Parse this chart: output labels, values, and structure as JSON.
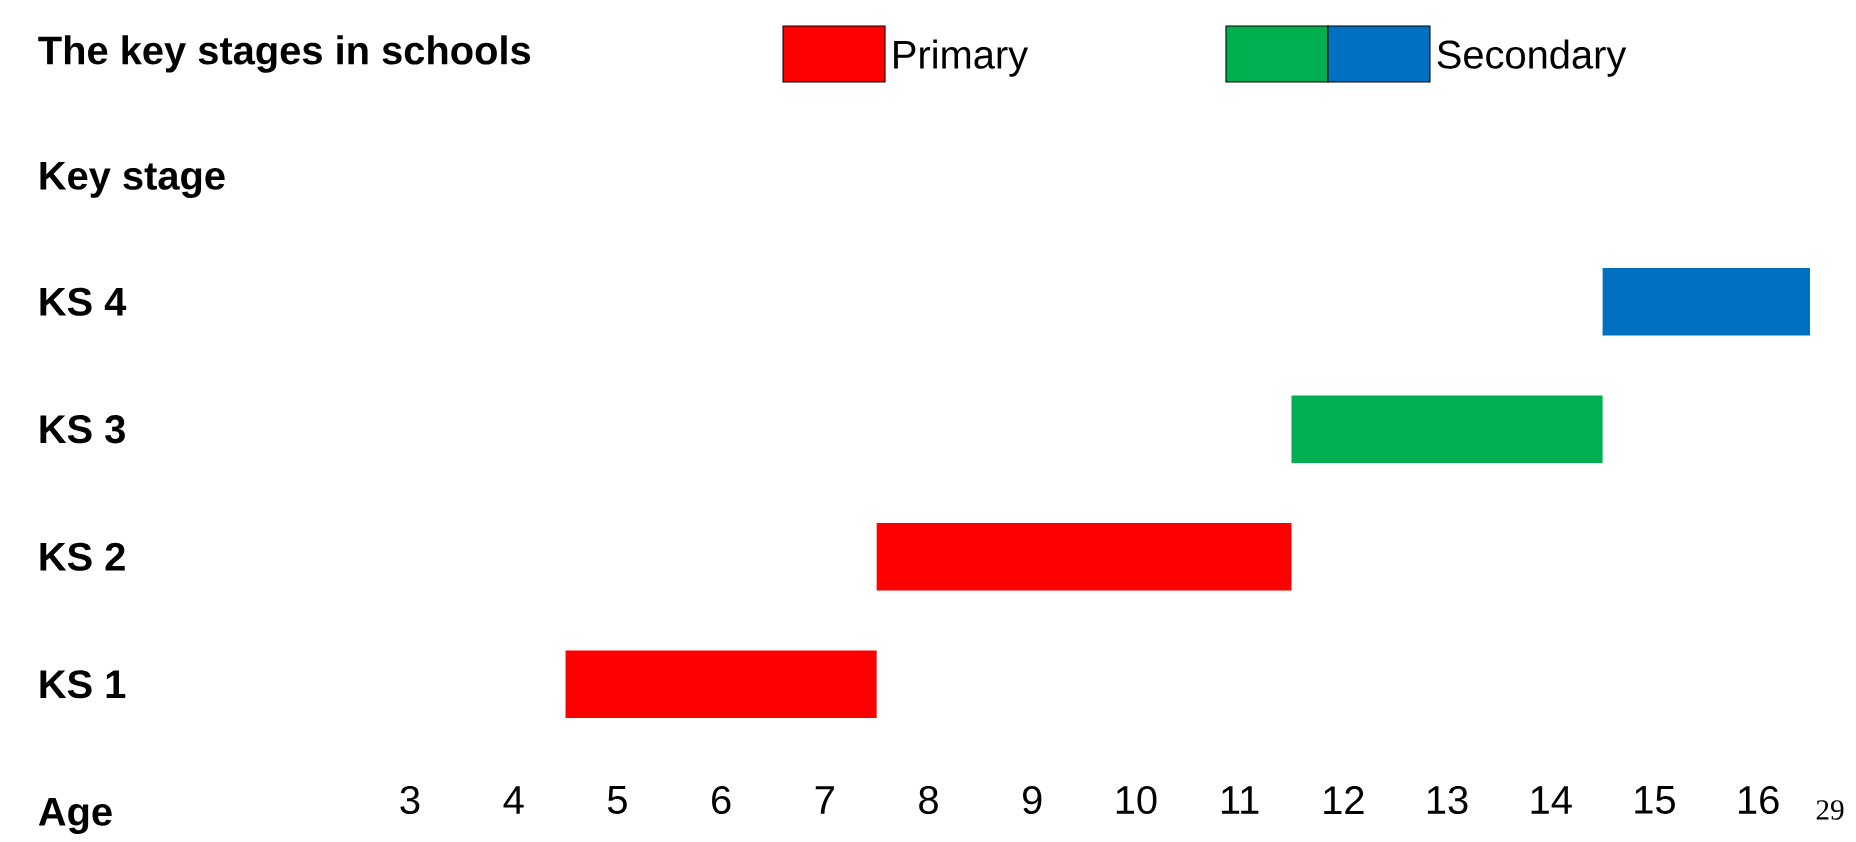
{
  "chart_data": {
    "type": "bar",
    "orientation": "horizontal",
    "title": "The key stages in schools",
    "ylabel": "Key stage",
    "xlabel": "Age",
    "categories": [
      "KS 4",
      "KS 3",
      "KS 2",
      "KS 1"
    ],
    "series": [
      {
        "name": "Primary",
        "color": "#ff0000",
        "values": [
          null,
          null,
          4,
          3
        ],
        "base": [
          null,
          null,
          7.5,
          4.5
        ]
      },
      {
        "name": "Secondary",
        "colors": [
          "#0070c0",
          "#00b050",
          null,
          null
        ],
        "values": [
          2,
          3,
          null,
          null
        ],
        "base": [
          14.5,
          11.5,
          null,
          null
        ]
      }
    ],
    "xlim": [
      3,
      16.5
    ],
    "xticks": [
      3,
      4,
      5,
      6,
      7,
      8,
      9,
      10,
      11,
      12,
      13,
      14,
      15,
      16
    ],
    "grid": false,
    "legend": "top",
    "annotations": [
      "29"
    ]
  }
}
